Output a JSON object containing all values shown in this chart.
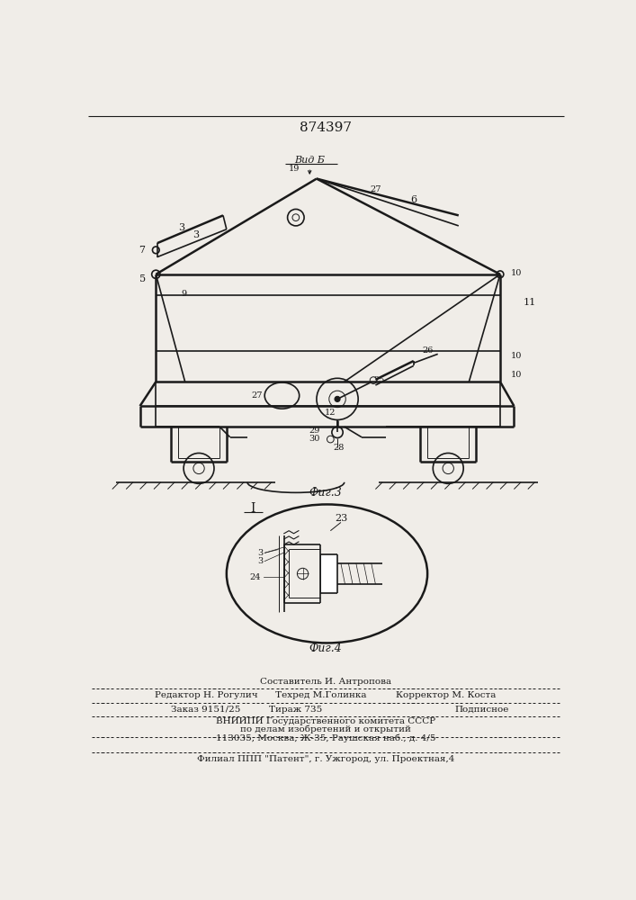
{
  "patent_number": "874397",
  "fig3_label": "Фиг.3",
  "fig4_label": "Фиг.4",
  "vid_b_label": "Вид Б",
  "bg_color": "#f0ede8",
  "line_color": "#1a1a1a",
  "lw_thick": 1.8,
  "lw_med": 1.2,
  "lw_thin": 0.7
}
